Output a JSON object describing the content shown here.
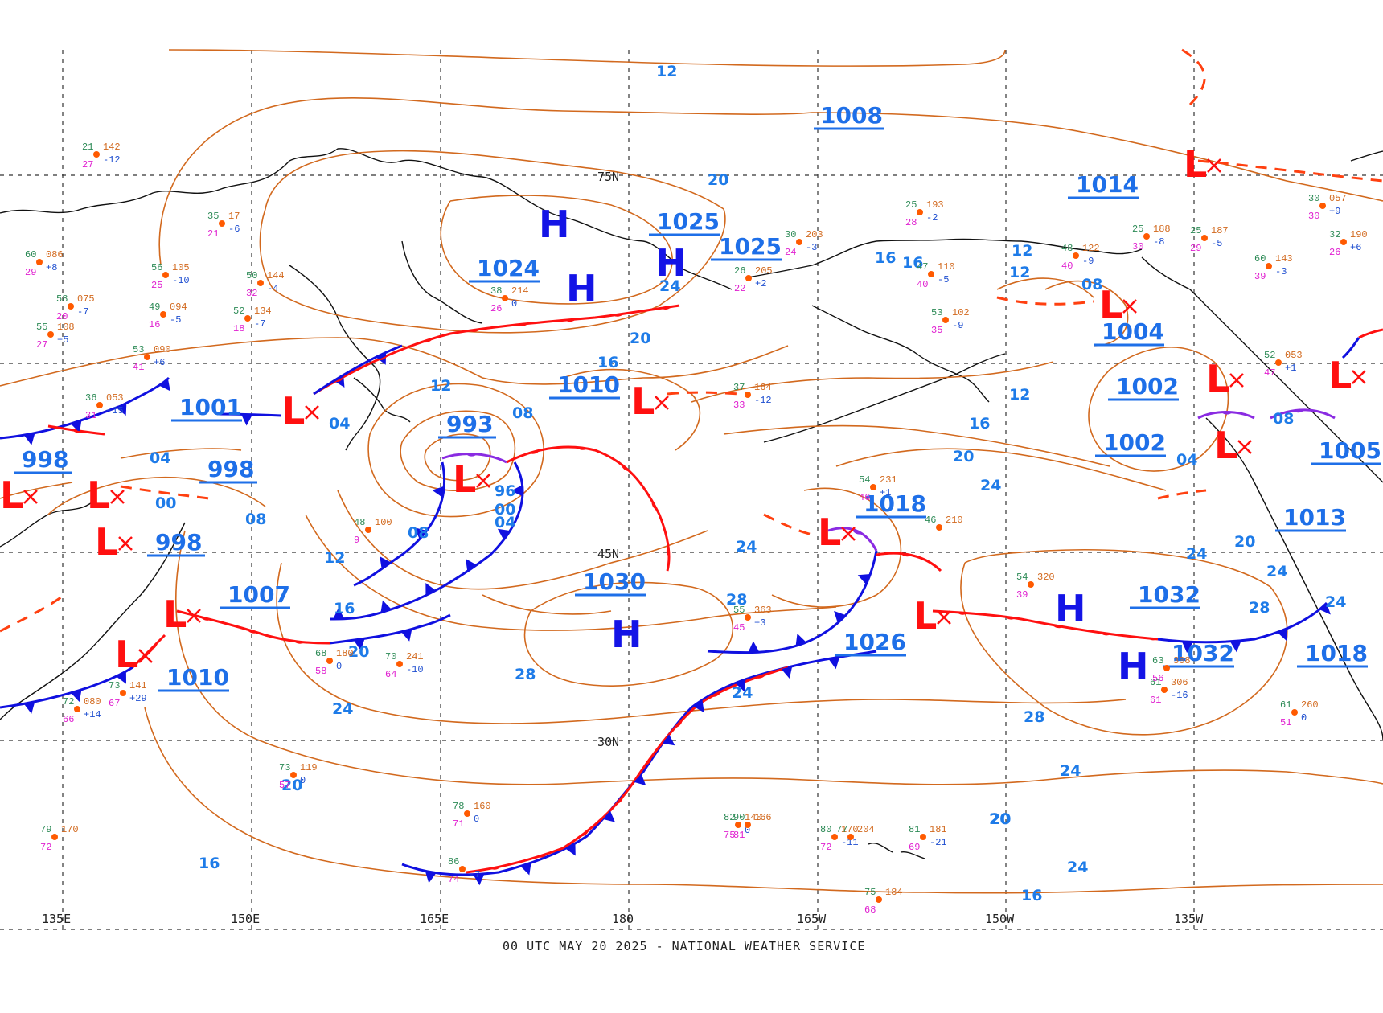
{
  "footer": "00 UTC MAY 20 2025 - NATIONAL WEATHER SERVICE",
  "lat_labels": [
    "75N",
    "45N",
    "30N"
  ],
  "lon_labels": [
    "135E",
    "150E",
    "165E",
    "180",
    "165W",
    "150W",
    "135W"
  ],
  "highs": [
    "H",
    "H",
    "H",
    "H",
    "H",
    "H"
  ],
  "lows": [
    "L",
    "L",
    "L",
    "L",
    "L",
    "L",
    "L",
    "L",
    "L",
    "L",
    "L",
    "L",
    "L",
    "L",
    "L"
  ],
  "center_pressures": [
    "1008",
    "1014",
    "1025",
    "1025",
    "1024",
    "1010",
    "1001",
    "993",
    "998",
    "998",
    "998",
    "1004",
    "1002",
    "1002",
    "1005",
    "1013",
    "1018",
    "1030",
    "1007",
    "1010",
    "1026",
    "1032",
    "1032",
    "1018"
  ],
  "isobar_labels": [
    "12",
    "20",
    "24",
    "20",
    "16",
    "12",
    "08",
    "04",
    "00",
    "08",
    "04",
    "96",
    "00",
    "04",
    "08",
    "12",
    "16",
    "20",
    "24",
    "28",
    "24",
    "20",
    "16",
    "12",
    "16",
    "12",
    "08",
    "12",
    "16",
    "20",
    "24",
    "24",
    "28",
    "24",
    "20",
    "04",
    "08",
    "24",
    "20",
    "24",
    "28",
    "28",
    "24",
    "20",
    "16",
    "16",
    "24"
  ],
  "observations": [
    {
      "t": "21",
      "p": "142",
      "c": "-12",
      "d": "27"
    },
    {
      "t": "35",
      "p": "17",
      "c": "-6",
      "d": "21"
    },
    {
      "t": "60",
      "p": "086",
      "c": "+8",
      "d": "29"
    },
    {
      "t": "56",
      "p": "105",
      "c": "-10",
      "d": "25"
    },
    {
      "t": "50",
      "p": "144",
      "c": "-4",
      "d": "32"
    },
    {
      "t": "58",
      "p": "075",
      "c": "-7",
      "d": "20"
    },
    {
      "t": "49",
      "p": "094",
      "c": "-5",
      "d": "16"
    },
    {
      "t": "52",
      "p": "134",
      "c": "-7",
      "d": "18"
    },
    {
      "t": "55",
      "p": "108",
      "c": "+5",
      "d": "27"
    },
    {
      "t": "53",
      "p": "090",
      "c": "+6",
      "d": "41"
    },
    {
      "t": "36",
      "p": "053",
      "c": "+15",
      "d": "31"
    },
    {
      "t": "38",
      "p": "214",
      "c": "0",
      "d": "26"
    },
    {
      "t": "37",
      "p": "164",
      "c": "-12",
      "d": "33"
    },
    {
      "t": "26",
      "p": "205",
      "c": "+2",
      "d": "22"
    },
    {
      "t": "30",
      "p": "203",
      "c": "-3",
      "d": "24"
    },
    {
      "t": "25",
      "p": "193",
      "c": "-2",
      "d": "28"
    },
    {
      "t": "48",
      "p": "122",
      "c": "-9",
      "d": "40"
    },
    {
      "t": "25",
      "p": "188",
      "c": "-8",
      "d": "30"
    },
    {
      "t": "25",
      "p": "187",
      "c": "-5",
      "d": "29"
    },
    {
      "t": "30",
      "p": "057",
      "c": "+9",
      "d": "30"
    },
    {
      "t": "32",
      "p": "190",
      "c": "+6",
      "d": "26"
    },
    {
      "t": "60",
      "p": "143",
      "c": "-3",
      "d": "39"
    },
    {
      "t": "47",
      "p": "110",
      "c": "-5",
      "d": "40"
    },
    {
      "t": "53",
      "p": "102",
      "c": "-9",
      "d": "35"
    },
    {
      "t": "52",
      "p": "053",
      "c": "+1",
      "d": "47"
    },
    {
      "t": "54",
      "p": "231",
      "c": "+1",
      "d": "46"
    },
    {
      "t": "48",
      "p": "100",
      "c": "",
      "d": "9"
    },
    {
      "t": "46",
      "p": "210",
      "c": "",
      "d": ""
    },
    {
      "t": "55",
      "p": "363",
      "c": "+3",
      "d": "45"
    },
    {
      "t": "54",
      "p": "320",
      "c": "",
      "d": "39"
    },
    {
      "t": "68",
      "p": "180",
      "c": "0",
      "d": "58"
    },
    {
      "t": "70",
      "p": "241",
      "c": "-10",
      "d": "64"
    },
    {
      "t": "73",
      "p": "141",
      "c": "+29",
      "d": "67"
    },
    {
      "t": "72",
      "p": "080",
      "c": "+14",
      "d": "66"
    },
    {
      "t": "63",
      "p": "308",
      "c": "",
      "d": "56"
    },
    {
      "t": "61",
      "p": "306",
      "c": "-16",
      "d": "61"
    },
    {
      "t": "61",
      "p": "260",
      "c": "0",
      "d": "51"
    },
    {
      "t": "73",
      "p": "119",
      "c": "0",
      "d": "57"
    },
    {
      "t": "78",
      "p": "160",
      "c": "0",
      "d": "71"
    },
    {
      "t": "82",
      "p": "140",
      "c": "0",
      "d": "75"
    },
    {
      "t": "80",
      "p": "170",
      "c": "-11",
      "d": "72"
    },
    {
      "t": "77",
      "p": "204",
      "c": "",
      "d": ""
    },
    {
      "t": "81",
      "p": "181",
      "c": "-21",
      "d": "69"
    },
    {
      "t": "75",
      "p": "184",
      "c": "",
      "d": "68"
    },
    {
      "t": "79",
      "p": "170",
      "c": "",
      "d": "72"
    },
    {
      "t": "90",
      "p": "166",
      "c": "",
      "d": "81"
    },
    {
      "t": "86",
      "p": "",
      "c": "-7",
      "d": "74"
    }
  ],
  "colors": {
    "isobar": "#d2691e",
    "label_blue": "#1e7be8",
    "high": "#1414e6",
    "low": "#ff1010",
    "cold_front": "#1010e0",
    "warm_front": "#ff1010",
    "occluded_front": "#8a2be2"
  }
}
